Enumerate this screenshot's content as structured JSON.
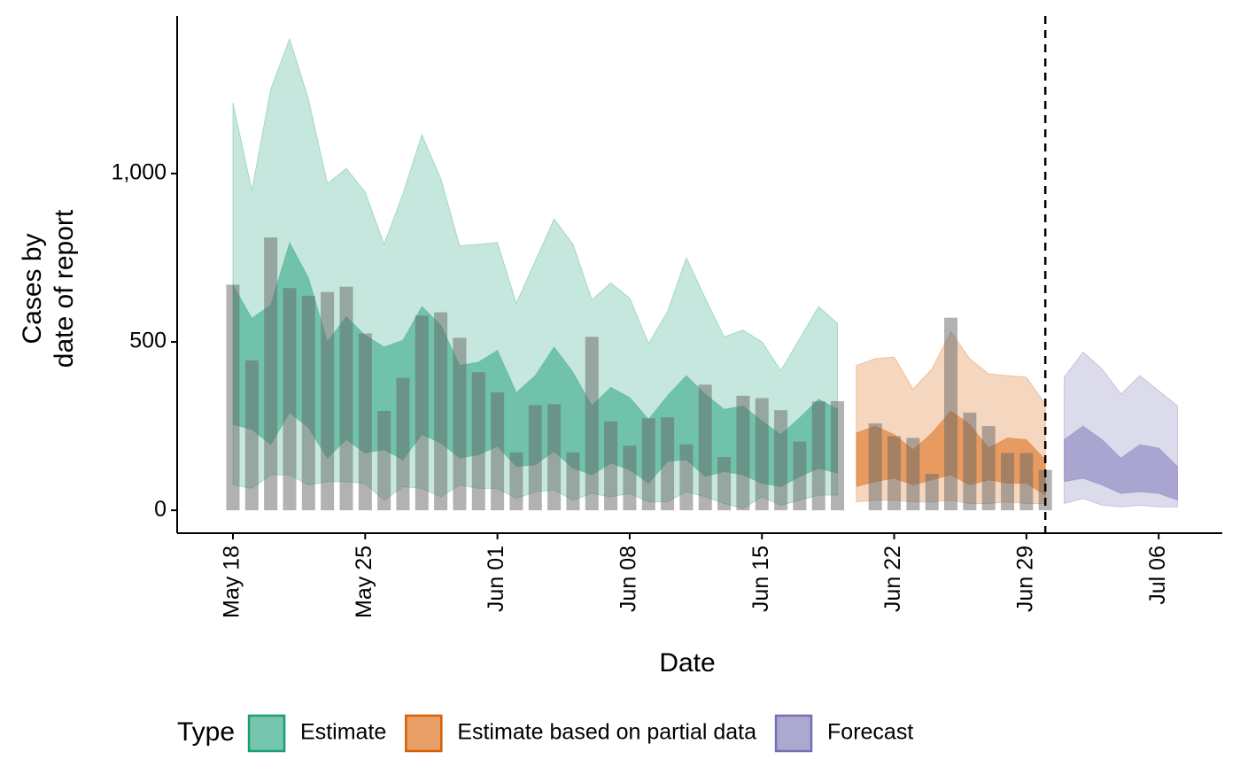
{
  "chart_data": {
    "type": "ribbon",
    "x_label": "Date",
    "y_label": [
      "Cases by",
      "date of report"
    ],
    "x": [
      "May 18",
      "May 19",
      "May 20",
      "May 21",
      "May 22",
      "May 23",
      "May 24",
      "May 25",
      "May 26",
      "May 27",
      "May 28",
      "May 29",
      "May 30",
      "May 31",
      "Jun 01",
      "Jun 02",
      "Jun 03",
      "Jun 04",
      "Jun 05",
      "Jun 06",
      "Jun 07",
      "Jun 08",
      "Jun 09",
      "Jun 10",
      "Jun 11",
      "Jun 12",
      "Jun 13",
      "Jun 14",
      "Jun 15",
      "Jun 16",
      "Jun 17",
      "Jun 18",
      "Jun 19",
      "Jun 20",
      "Jun 21",
      "Jun 22",
      "Jun 23",
      "Jun 24",
      "Jun 25",
      "Jun 26",
      "Jun 27",
      "Jun 28",
      "Jun 29",
      "Jun 30",
      "Jul 01",
      "Jul 02",
      "Jul 03",
      "Jul 04",
      "Jul 05",
      "Jul 06",
      "Jul 07"
    ],
    "xticks": [
      "May 18",
      "May 25",
      "Jun 01",
      "Jun 08",
      "Jun 15",
      "Jun 22",
      "Jun 29",
      "Jul 06"
    ],
    "ylim": [
      -68,
      1468
    ],
    "yticks": [
      0,
      500,
      {
        "value": 1000,
        "label": "1,000"
      }
    ],
    "vline": "Jun 30",
    "bars": {
      "color": "#666666",
      "values": [
        670,
        445,
        810,
        660,
        637,
        648,
        664,
        525,
        295,
        393,
        578,
        588,
        512,
        410,
        350,
        172,
        312,
        315,
        172,
        515,
        264,
        192,
        273,
        276,
        196,
        373,
        158,
        340,
        333,
        297,
        204,
        323,
        324,
        null,
        258,
        220,
        215,
        108,
        572,
        290,
        250,
        170,
        170,
        120,
        null,
        null,
        null,
        null,
        null,
        null,
        null
      ]
    },
    "legend_title": "Type",
    "series": [
      {
        "name": "Estimate",
        "color": "#1b9e77",
        "outer_upper": [
          1210,
          950,
          1250,
          1400,
          1220,
          970,
          1015,
          945,
          790,
          940,
          1115,
          985,
          785,
          790,
          795,
          615,
          740,
          865,
          790,
          625,
          675,
          630,
          495,
          590,
          750,
          630,
          515,
          535,
          500,
          415,
          510,
          605,
          555,
          null,
          null,
          null,
          null,
          null,
          null,
          null,
          null,
          null,
          null,
          null,
          null,
          null,
          null,
          null,
          null,
          null,
          null
        ],
        "inner_upper": [
          670,
          570,
          610,
          795,
          690,
          500,
          575,
          520,
          485,
          505,
          605,
          550,
          430,
          440,
          475,
          350,
          400,
          485,
          410,
          310,
          365,
          335,
          270,
          340,
          400,
          345,
          300,
          310,
          265,
          225,
          275,
          330,
          300,
          null,
          null,
          null,
          null,
          null,
          null,
          null,
          null,
          null,
          null,
          null,
          null,
          null,
          null,
          null,
          null,
          null,
          null
        ],
        "inner_lower": [
          255,
          240,
          195,
          290,
          245,
          155,
          210,
          170,
          180,
          150,
          225,
          200,
          155,
          165,
          190,
          130,
          135,
          175,
          125,
          105,
          140,
          120,
          80,
          145,
          150,
          100,
          115,
          105,
          80,
          70,
          100,
          125,
          110,
          null,
          null,
          null,
          null,
          null,
          null,
          null,
          null,
          null,
          null,
          null,
          null,
          null,
          null,
          null,
          null,
          null,
          null
        ],
        "outer_lower": [
          75,
          65,
          105,
          105,
          75,
          85,
          85,
          80,
          30,
          70,
          65,
          40,
          75,
          65,
          65,
          35,
          55,
          60,
          30,
          50,
          40,
          50,
          25,
          25,
          55,
          40,
          20,
          5,
          40,
          15,
          30,
          45,
          45,
          null,
          null,
          null,
          null,
          null,
          null,
          null,
          null,
          null,
          null,
          null,
          null,
          null,
          null,
          null,
          null,
          null,
          null
        ]
      },
      {
        "name": "Estimate based on partial data",
        "color": "#d95f02",
        "outer_upper": [
          null,
          null,
          null,
          null,
          null,
          null,
          null,
          null,
          null,
          null,
          null,
          null,
          null,
          null,
          null,
          null,
          null,
          null,
          null,
          null,
          null,
          null,
          null,
          null,
          null,
          null,
          null,
          null,
          null,
          null,
          null,
          null,
          null,
          430,
          450,
          455,
          360,
          420,
          530,
          450,
          405,
          400,
          395,
          315,
          null,
          null,
          null,
          null,
          null,
          null,
          null
        ],
        "inner_upper": [
          null,
          null,
          null,
          null,
          null,
          null,
          null,
          null,
          null,
          null,
          null,
          null,
          null,
          null,
          null,
          null,
          null,
          null,
          null,
          null,
          null,
          null,
          null,
          null,
          null,
          null,
          null,
          null,
          null,
          null,
          null,
          null,
          null,
          230,
          250,
          225,
          180,
          230,
          295,
          255,
          185,
          215,
          210,
          150,
          null,
          null,
          null,
          null,
          null,
          null,
          null
        ],
        "inner_lower": [
          null,
          null,
          null,
          null,
          null,
          null,
          null,
          null,
          null,
          null,
          null,
          null,
          null,
          null,
          null,
          null,
          null,
          null,
          null,
          null,
          null,
          null,
          null,
          null,
          null,
          null,
          null,
          null,
          null,
          null,
          null,
          null,
          null,
          70,
          85,
          95,
          75,
          90,
          105,
          75,
          90,
          80,
          80,
          45,
          null,
          null,
          null,
          null,
          null,
          null,
          null
        ],
        "outer_lower": [
          null,
          null,
          null,
          null,
          null,
          null,
          null,
          null,
          null,
          null,
          null,
          null,
          null,
          null,
          null,
          null,
          null,
          null,
          null,
          null,
          null,
          null,
          null,
          null,
          null,
          null,
          null,
          null,
          null,
          null,
          null,
          null,
          null,
          25,
          30,
          30,
          25,
          25,
          30,
          20,
          20,
          25,
          20,
          20,
          null,
          null,
          null,
          null,
          null,
          null,
          null
        ]
      },
      {
        "name": "Forecast",
        "color": "#7570b3",
        "outer_upper": [
          null,
          null,
          null,
          null,
          null,
          null,
          null,
          null,
          null,
          null,
          null,
          null,
          null,
          null,
          null,
          null,
          null,
          null,
          null,
          null,
          null,
          null,
          null,
          null,
          null,
          null,
          null,
          null,
          null,
          null,
          null,
          null,
          null,
          null,
          null,
          null,
          null,
          null,
          null,
          null,
          null,
          null,
          null,
          null,
          395,
          470,
          420,
          345,
          400,
          355,
          310
        ],
        "inner_upper": [
          null,
          null,
          null,
          null,
          null,
          null,
          null,
          null,
          null,
          null,
          null,
          null,
          null,
          null,
          null,
          null,
          null,
          null,
          null,
          null,
          null,
          null,
          null,
          null,
          null,
          null,
          null,
          null,
          null,
          null,
          null,
          null,
          null,
          null,
          null,
          null,
          null,
          null,
          null,
          null,
          null,
          null,
          null,
          null,
          210,
          250,
          210,
          155,
          195,
          185,
          130
        ],
        "inner_lower": [
          null,
          null,
          null,
          null,
          null,
          null,
          null,
          null,
          null,
          null,
          null,
          null,
          null,
          null,
          null,
          null,
          null,
          null,
          null,
          null,
          null,
          null,
          null,
          null,
          null,
          null,
          null,
          null,
          null,
          null,
          null,
          null,
          null,
          null,
          null,
          null,
          null,
          null,
          null,
          null,
          null,
          null,
          null,
          null,
          85,
          95,
          75,
          50,
          55,
          50,
          30
        ],
        "outer_lower": [
          null,
          null,
          null,
          null,
          null,
          null,
          null,
          null,
          null,
          null,
          null,
          null,
          null,
          null,
          null,
          null,
          null,
          null,
          null,
          null,
          null,
          null,
          null,
          null,
          null,
          null,
          null,
          null,
          null,
          null,
          null,
          null,
          null,
          null,
          null,
          null,
          null,
          null,
          null,
          null,
          null,
          null,
          null,
          null,
          20,
          35,
          15,
          10,
          15,
          10,
          10
        ]
      }
    ]
  }
}
